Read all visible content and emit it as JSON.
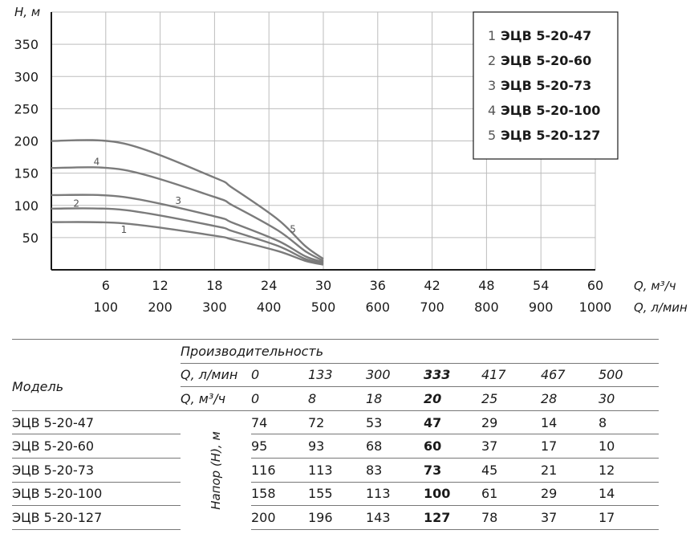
{
  "chart_data": {
    "type": "line",
    "ylabel": "H, м",
    "xlabel_primary": "Q, м³/ч",
    "xlabel_secondary": "Q, л/мин",
    "xlim": [
      0,
      60
    ],
    "ylim": [
      0,
      400
    ],
    "yticks": [
      50,
      100,
      150,
      200,
      250,
      300,
      350
    ],
    "xticks_primary": [
      6,
      12,
      18,
      24,
      30,
      36,
      42,
      48,
      54,
      60
    ],
    "xticks_secondary": [
      100,
      200,
      300,
      400,
      500,
      600,
      700,
      800,
      900,
      1000
    ],
    "grid": true,
    "legend_position": "top-right",
    "x": [
      0,
      8,
      18,
      20,
      25,
      28,
      30
    ],
    "series": [
      {
        "label": "1",
        "name": "ЭЦВ 5-20-47",
        "values": [
          74,
          72,
          53,
          47,
          29,
          14,
          8
        ]
      },
      {
        "label": "2",
        "name": "ЭЦВ 5-20-60",
        "values": [
          95,
          93,
          68,
          60,
          37,
          17,
          10
        ]
      },
      {
        "label": "3",
        "name": "ЭЦВ 5-20-73",
        "values": [
          116,
          113,
          83,
          73,
          45,
          21,
          12
        ]
      },
      {
        "label": "4",
        "name": "ЭЦВ 5-20-100",
        "values": [
          158,
          155,
          113,
          100,
          61,
          29,
          14
        ]
      },
      {
        "label": "5",
        "name": "ЭЦВ 5-20-127",
        "values": [
          200,
          196,
          143,
          127,
          78,
          37,
          17
        ]
      }
    ]
  },
  "table": {
    "header_perf": "Производительность",
    "header_model": "Модель",
    "header_lmin": "Q, л/мин",
    "header_m3h": "Q, м³/ч",
    "header_head": "Напор (H), м",
    "lmin": [
      "0",
      "133",
      "300",
      "333",
      "417",
      "467",
      "500"
    ],
    "m3h": [
      "0",
      "8",
      "18",
      "20",
      "25",
      "28",
      "30"
    ],
    "rows": [
      {
        "model": "ЭЦВ 5-20-47",
        "values": [
          "74",
          "72",
          "53",
          "47",
          "29",
          "14",
          "8"
        ]
      },
      {
        "model": "ЭЦВ 5-20-60",
        "values": [
          "95",
          "93",
          "68",
          "60",
          "37",
          "17",
          "10"
        ]
      },
      {
        "model": "ЭЦВ 5-20-73",
        "values": [
          "116",
          "113",
          "83",
          "73",
          "45",
          "21",
          "12"
        ]
      },
      {
        "model": "ЭЦВ 5-20-100",
        "values": [
          "158",
          "155",
          "113",
          "100",
          "61",
          "29",
          "14"
        ]
      },
      {
        "model": "ЭЦВ 5-20-127",
        "values": [
          "200",
          "196",
          "143",
          "127",
          "78",
          "37",
          "17"
        ]
      }
    ]
  },
  "colors": {
    "curve": "#7b7b7b",
    "grid": "#bdbdbd",
    "axis": "#1a1a1a"
  }
}
